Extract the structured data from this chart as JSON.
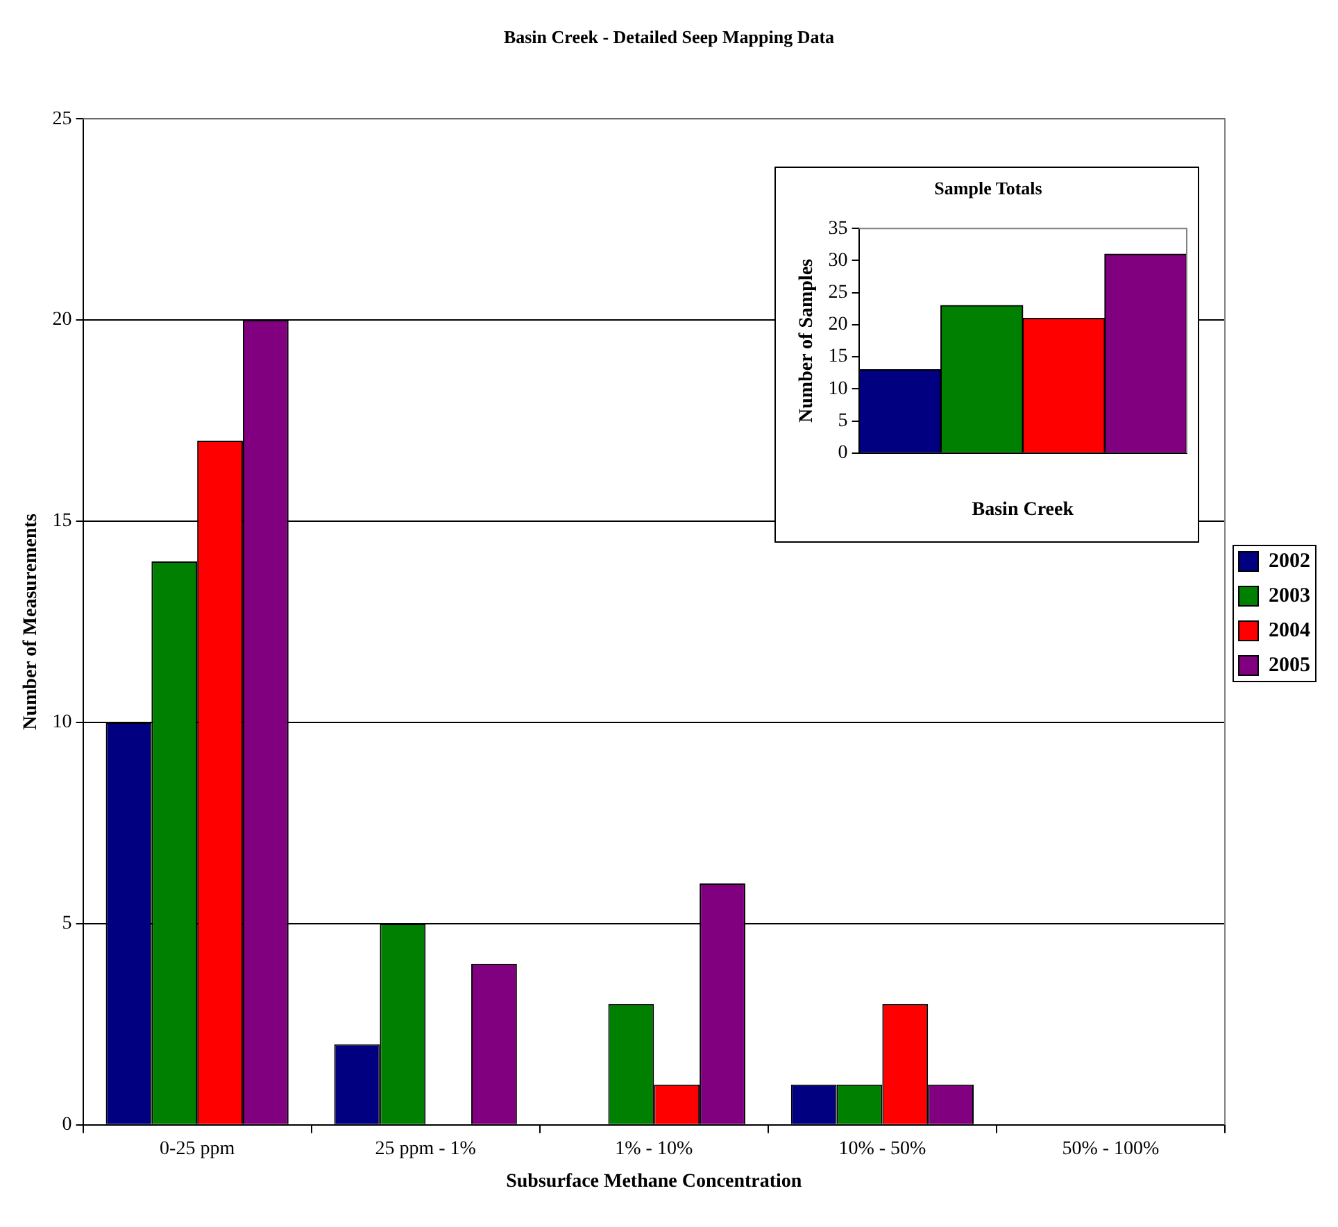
{
  "chart_data": [
    {
      "type": "bar",
      "title": "Basin Creek - Detailed Seep Mapping Data",
      "xlabel": "Subsurface Methane Concentration",
      "ylabel": "Number of Measurements",
      "categories": [
        "0-25 ppm",
        "25 ppm - 1%",
        "1% - 10%",
        "10% - 50%",
        "50% - 100%"
      ],
      "series": [
        {
          "name": "2002",
          "color": "#000080",
          "values": [
            10,
            2,
            0,
            1,
            0
          ]
        },
        {
          "name": "2003",
          "color": "#008000",
          "values": [
            14,
            5,
            3,
            1,
            0
          ]
        },
        {
          "name": "2004",
          "color": "#ff0000",
          "values": [
            17,
            0,
            1,
            3,
            0
          ]
        },
        {
          "name": "2005",
          "color": "#800080",
          "values": [
            20,
            4,
            6,
            1,
            0
          ]
        }
      ],
      "ylim": [
        0,
        25
      ],
      "yticks": [
        0,
        5,
        10,
        15,
        20,
        25
      ],
      "grid": "y",
      "legend": "right"
    },
    {
      "type": "bar",
      "title": "Sample Totals",
      "xlabel": "Basin Creek",
      "ylabel": "Number of Samples",
      "categories": [
        null,
        null,
        null,
        null
      ],
      "values": [
        13,
        23,
        21,
        31
      ],
      "colors": [
        "#000080",
        "#008000",
        "#ff0000",
        "#800080"
      ],
      "ylim": [
        0,
        35
      ],
      "yticks": [
        0,
        5,
        10,
        15,
        20,
        25,
        30,
        35
      ],
      "legend": false
    }
  ]
}
